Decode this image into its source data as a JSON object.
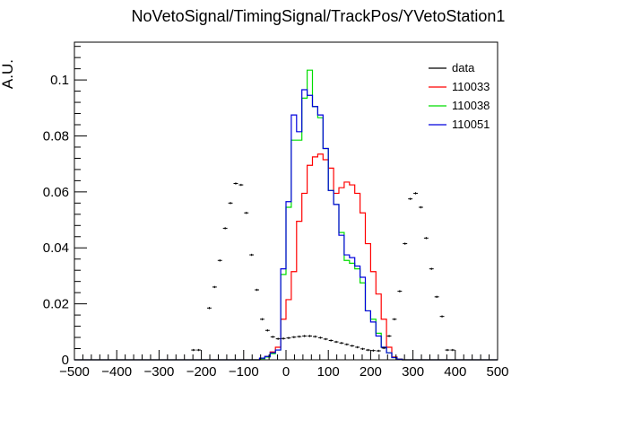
{
  "chart_data": {
    "type": "line",
    "title": "NoVetoSignal/TimingSignal/TrackPos/YVetoStation1",
    "xlabel": "",
    "ylabel": "A.U.",
    "xlim": [
      -500,
      500
    ],
    "ylim": [
      0,
      0.1135
    ],
    "x_ticks": [
      -500,
      -400,
      -300,
      -200,
      -100,
      0,
      100,
      200,
      300,
      400,
      500
    ],
    "x_tick_labels": [
      "−500",
      "−400",
      "−300",
      "−200",
      "−100",
      "0",
      "100",
      "200",
      "300",
      "400",
      "500"
    ],
    "y_ticks": [
      0,
      0.02,
      0.04,
      0.06,
      0.08,
      0.1
    ],
    "y_tick_labels": [
      "0",
      "0.02",
      "0.04",
      "0.06",
      "0.08",
      "0.1"
    ],
    "bin_edges_start": -500,
    "bin_width": 12.5,
    "legend_position": "top-right",
    "grid": false,
    "series": [
      {
        "name": "data",
        "style": "points",
        "color": "#000000",
        "values": [
          0,
          0,
          0,
          0,
          0,
          0,
          0,
          0,
          0,
          0,
          0,
          0,
          0,
          0,
          0,
          0,
          0,
          0,
          0,
          0,
          0,
          0,
          0.0035,
          0.0035,
          0,
          0.0185,
          0.026,
          0.0355,
          0.047,
          0.056,
          0.063,
          0.0625,
          0.0525,
          0.0375,
          0.025,
          0.0145,
          0.0105,
          0.0082,
          0.0075,
          0.0076,
          0.0078,
          0.0081,
          0.0083,
          0.0085,
          0.0085,
          0.0083,
          0.0079,
          0.0074,
          0.0069,
          0.0064,
          0.006,
          0.0055,
          0.005,
          0.0045,
          0.0039,
          0.0035,
          0.0033,
          0.0032,
          0.0042,
          0.0085,
          0.0145,
          0.0245,
          0.0415,
          0.0575,
          0.0595,
          0.0545,
          0.0435,
          0.0325,
          0.0225,
          0.0155,
          0.0035,
          0.0035,
          0,
          0,
          0,
          0,
          0,
          0,
          0,
          0
        ]
      },
      {
        "name": "110033",
        "style": "step",
        "color": "#ff0000",
        "values": [
          0,
          0,
          0,
          0,
          0,
          0,
          0,
          0,
          0,
          0,
          0,
          0,
          0,
          0,
          0,
          0,
          0,
          0,
          0,
          0,
          0,
          0,
          0,
          0,
          0,
          0,
          0,
          0,
          0,
          0,
          0,
          0,
          0,
          0,
          0,
          0.0005,
          0.0012,
          0.0028,
          0.0045,
          0.0145,
          0.0215,
          0.0315,
          0.0495,
          0.0595,
          0.0695,
          0.0725,
          0.0735,
          0.0715,
          0.0685,
          0.0595,
          0.0615,
          0.0635,
          0.0625,
          0.0595,
          0.0525,
          0.0415,
          0.0315,
          0.0235,
          0.0145,
          0.0045,
          0.001,
          0.0003,
          0,
          0,
          0,
          0,
          0,
          0,
          0,
          0,
          0,
          0,
          0,
          0,
          0,
          0,
          0,
          0,
          0,
          0
        ]
      },
      {
        "name": "110038",
        "style": "step",
        "color": "#00dd00",
        "values": [
          0,
          0,
          0,
          0,
          0,
          0,
          0,
          0,
          0,
          0,
          0,
          0,
          0,
          0,
          0,
          0,
          0,
          0,
          0,
          0,
          0,
          0,
          0,
          0,
          0,
          0,
          0,
          0,
          0,
          0,
          0,
          0,
          0,
          0,
          0,
          0.0004,
          0.001,
          0.0022,
          0.0035,
          0.0305,
          0.0545,
          0.0785,
          0.0785,
          0.0935,
          0.1035,
          0.0905,
          0.0865,
          0.0755,
          0.0605,
          0.0555,
          0.0455,
          0.0355,
          0.0345,
          0.0325,
          0.0275,
          0.0175,
          0.0145,
          0.0095,
          0.0045,
          0.0025,
          0.0008,
          0.0002,
          0,
          0,
          0,
          0,
          0,
          0,
          0,
          0,
          0,
          0,
          0,
          0,
          0,
          0,
          0,
          0,
          0,
          0
        ]
      },
      {
        "name": "110051",
        "style": "step",
        "color": "#0000dd",
        "values": [
          0,
          0,
          0,
          0,
          0,
          0,
          0,
          0,
          0,
          0,
          0,
          0,
          0,
          0,
          0,
          0,
          0,
          0,
          0,
          0,
          0,
          0,
          0,
          0,
          0,
          0,
          0,
          0,
          0,
          0,
          0,
          0,
          0,
          0,
          0,
          0.0006,
          0.0012,
          0.0025,
          0.0035,
          0.0325,
          0.0565,
          0.0875,
          0.0815,
          0.0965,
          0.0945,
          0.0905,
          0.0875,
          0.0755,
          0.0605,
          0.0555,
          0.0445,
          0.0375,
          0.0365,
          0.0335,
          0.0295,
          0.0175,
          0.0135,
          0.0085,
          0.0045,
          0.0025,
          0.0008,
          0.0002,
          0,
          0,
          0,
          0,
          0,
          0,
          0,
          0,
          0,
          0,
          0,
          0,
          0,
          0,
          0,
          0,
          0,
          0
        ]
      }
    ]
  }
}
